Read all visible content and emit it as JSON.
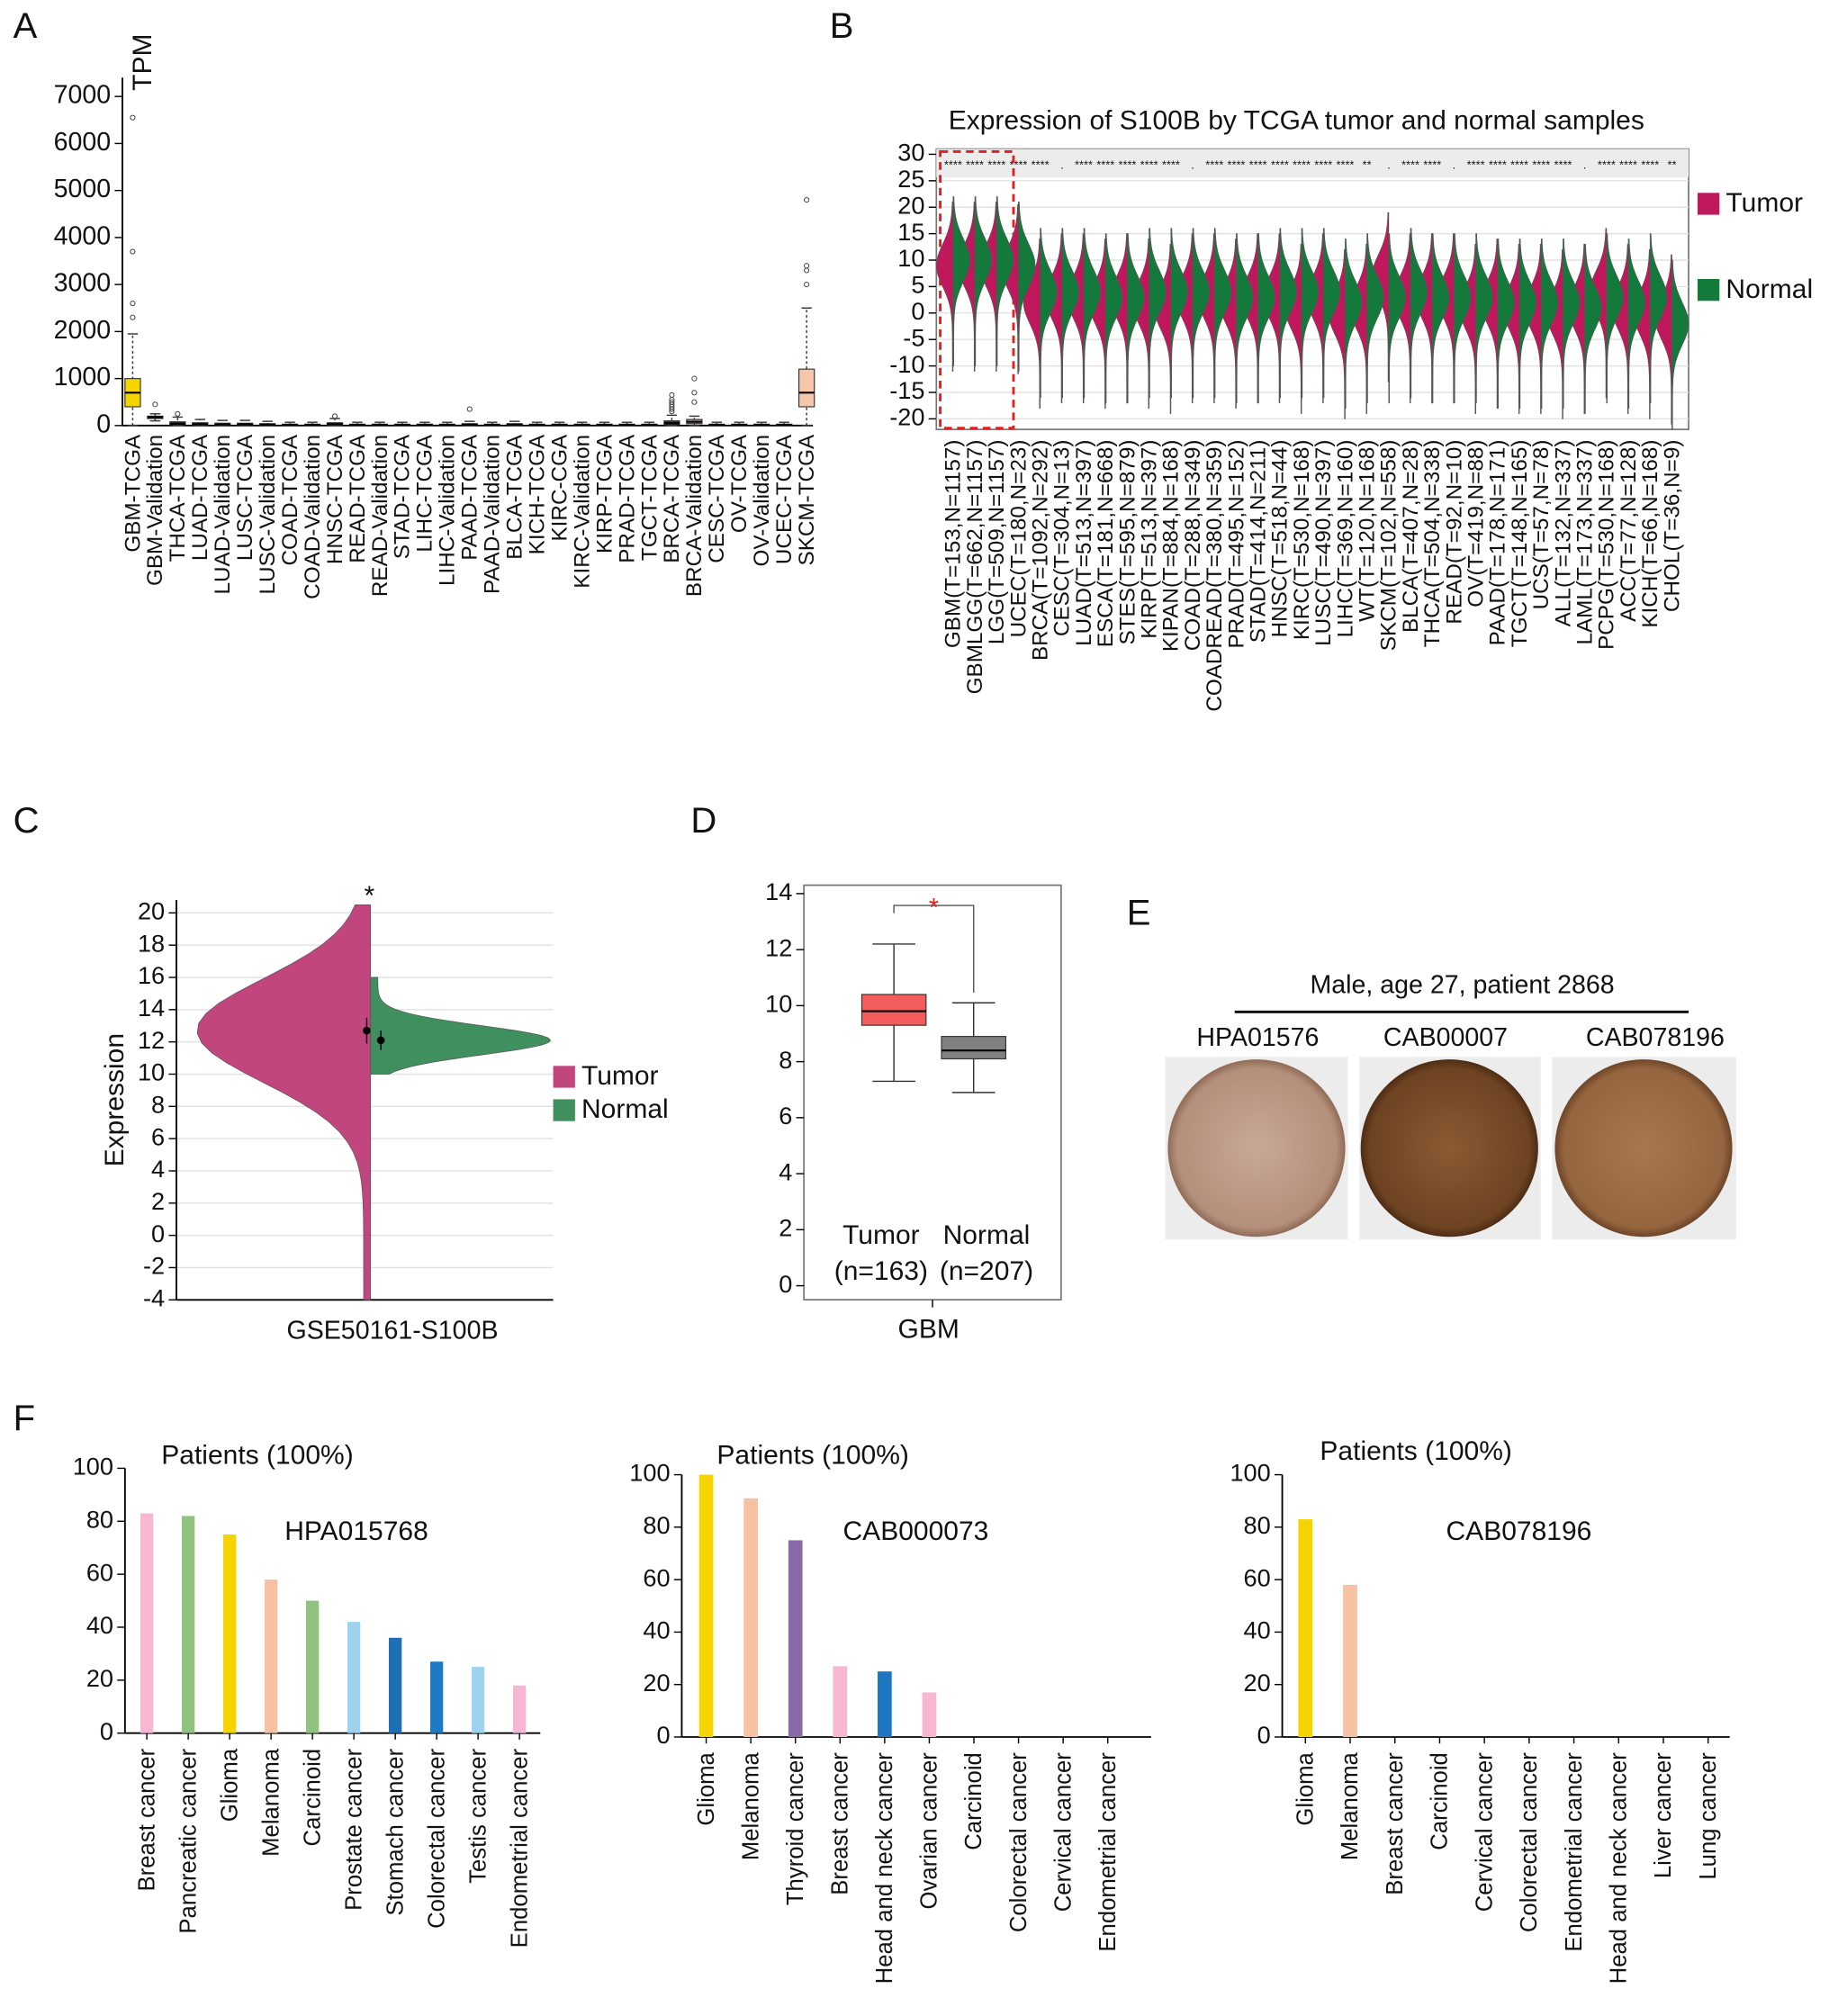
{
  "chart_data": [
    {
      "type": "box",
      "panel": "A",
      "ylabel": "TPM",
      "categories": [
        "GBM-TCGA",
        "GBM-Validation",
        "THCA-TCGA",
        "LUAD-TCGA",
        "LUAD-Validation",
        "LUSC-TCGA",
        "LUSC-Validation",
        "COAD-TCGA",
        "COAD-Validation",
        "HNSC-TCGA",
        "READ-TCGA",
        "READ-Validation",
        "STAD-TCGA",
        "LIHC-TCGA",
        "LIHC-Validation",
        "PAAD-TCGA",
        "PAAD-Validation",
        "BLCA-TCGA",
        "KICH-TCGA",
        "KIRC-CGA",
        "KIRC-Validation",
        "KIRP-TCGA",
        "PRAD-TCGA",
        "TGCT-TCGA",
        "BRCA-TCGA",
        "BRCA-Validation",
        "CESC-TCGA",
        "OV-TCGA",
        "OV-Validation",
        "UCEC-TCGA",
        "SKCM-TCGA"
      ],
      "boxes": [
        [
          0,
          400,
          700,
          1000,
          1950
        ],
        [
          100,
          150,
          180,
          200,
          250
        ],
        [
          0,
          20,
          40,
          80,
          180
        ],
        [
          0,
          10,
          30,
          60,
          130
        ],
        [
          0,
          10,
          25,
          50,
          110
        ],
        [
          0,
          10,
          25,
          50,
          110
        ],
        [
          0,
          10,
          20,
          40,
          90
        ],
        [
          0,
          5,
          15,
          30,
          70
        ],
        [
          0,
          5,
          15,
          30,
          70
        ],
        [
          0,
          10,
          30,
          60,
          150
        ],
        [
          0,
          5,
          15,
          30,
          70
        ],
        [
          0,
          5,
          15,
          30,
          70
        ],
        [
          0,
          5,
          15,
          30,
          70
        ],
        [
          0,
          5,
          15,
          30,
          70
        ],
        [
          0,
          5,
          15,
          30,
          70
        ],
        [
          0,
          10,
          20,
          40,
          90
        ],
        [
          0,
          5,
          15,
          30,
          70
        ],
        [
          0,
          10,
          20,
          40,
          90
        ],
        [
          0,
          5,
          15,
          30,
          70
        ],
        [
          0,
          5,
          15,
          30,
          70
        ],
        [
          0,
          5,
          15,
          30,
          70
        ],
        [
          0,
          5,
          15,
          30,
          70
        ],
        [
          0,
          5,
          15,
          30,
          70
        ],
        [
          0,
          5,
          15,
          30,
          70
        ],
        [
          0,
          20,
          50,
          100,
          220
        ],
        [
          0,
          40,
          80,
          130,
          200
        ],
        [
          0,
          5,
          15,
          30,
          70
        ],
        [
          0,
          5,
          15,
          30,
          70
        ],
        [
          0,
          5,
          15,
          30,
          70
        ],
        [
          0,
          5,
          15,
          30,
          70
        ],
        [
          0,
          400,
          700,
          1200,
          2500
        ]
      ],
      "outliers": [
        [
          2300,
          2600,
          3700,
          6550
        ],
        [
          450
        ],
        [
          250
        ],
        [],
        [],
        [],
        [],
        [],
        [],
        [
          200
        ],
        [],
        [],
        [],
        [],
        [],
        [
          350
        ],
        [],
        [],
        [],
        [],
        [],
        [],
        [],
        [],
        [
          300,
          350,
          400,
          450,
          500,
          550,
          650
        ],
        [
          500,
          700,
          1000
        ],
        [],
        [],
        [],
        [],
        [
          3000,
          3300,
          3400,
          4800
        ]
      ],
      "colors": [
        "#f5d400",
        "#e8b400",
        "#333333",
        "#333333",
        "#333333",
        "#333333",
        "#333333",
        "#333333",
        "#333333",
        "#333333",
        "#333333",
        "#333333",
        "#333333",
        "#333333",
        "#333333",
        "#333333",
        "#333333",
        "#333333",
        "#333333",
        "#333333",
        "#333333",
        "#333333",
        "#333333",
        "#333333",
        "#333333",
        "#b89aa8",
        "#333333",
        "#333333",
        "#333333",
        "#333333",
        "#f7c6ab"
      ],
      "ylim": [
        0,
        7400
      ],
      "yticks": [
        0,
        1000,
        2000,
        3000,
        4000,
        5000,
        6000,
        7000
      ]
    },
    {
      "type": "violin",
      "panel": "B",
      "title": "Expression of S100B by TCGA tumor and normal samples",
      "grid": true,
      "categories": [
        "GBM(T=153,N=1157)",
        "GBMLGG(T=662,N=1157)",
        "LGG(T=509,N=1157)",
        "UCEC(T=180,N=23)",
        "BRCA(T=1092,N=292)",
        "CESC(T=304,N=13)",
        "LUAD(T=513,N=397)",
        "ESCA(T=181,N=668)",
        "STES(T=595,N=879)",
        "KIRP(T=513,N=397)",
        "KIPAN(T=884,N=168)",
        "COAD(T=288,N=349)",
        "COADREAD(T=380,N=359)",
        "PRAD(T=495,N=152)",
        "STAD(T=414,N=211)",
        "HNSC(T=518,N=44)",
        "KIRC(T=530,N=168)",
        "LUSC(T=490,N=397)",
        "LIHC(T=369,N=160)",
        "WT(T=120,N=168)",
        "SKCM(T=102,N=558)",
        "BLCA(T=407,N=28)",
        "THCA(T=504,N=338)",
        "READ(T=92,N=10)",
        "OV(T=419,N=88)",
        "PAAD(T=178,N=171)",
        "TGCT(T=148,N=165)",
        "UCS(T=57,N=78)",
        "ALL(T=132,N=337)",
        "LAML(T=173,N=337)",
        "PCPG(T=530,N=168)",
        "ACC(T=77,N=128)",
        "KICH(T=66,N=168)",
        "CHOL(T=36,N=9)"
      ],
      "annotations": [
        "****",
        "****",
        "****",
        "****",
        "****",
        ".",
        "****",
        "****",
        "****",
        "****",
        "****",
        ".",
        "****",
        "****",
        "****",
        "****",
        "****",
        "****",
        "****",
        "**",
        ".",
        "****",
        "****",
        ".",
        "****",
        "****",
        "****",
        "****",
        "****",
        ".",
        "****",
        "****",
        "****",
        "**"
      ],
      "series": [
        {
          "name": "Tumor",
          "color": "#c0185c",
          "values": [
            9,
            9,
            9,
            8.5,
            2,
            3,
            3,
            2,
            3,
            2,
            1,
            3,
            3,
            2,
            3,
            3,
            1,
            3,
            0,
            1,
            7,
            3,
            3,
            3,
            1,
            2,
            1,
            1,
            0,
            1,
            4,
            1,
            0,
            -1
          ]
        },
        {
          "name": "Normal",
          "color": "#137a3c",
          "values": [
            10,
            10,
            10,
            9,
            4,
            4,
            4,
            3,
            3,
            4,
            4,
            4,
            4,
            3,
            3,
            4,
            4,
            4,
            2,
            3,
            3,
            4,
            3,
            3,
            3,
            2,
            2,
            2,
            2,
            1,
            3,
            2,
            3,
            -2
          ]
        }
      ],
      "ylim": [
        -22,
        31
      ],
      "yticks": [
        -20,
        -15,
        -10,
        -5,
        0,
        5,
        10,
        15,
        20,
        25,
        30
      ]
    },
    {
      "type": "violin",
      "panel": "C",
      "ylabel": "Expression",
      "grid": true,
      "annotation": "*",
      "categories": [
        "GSE50161-S100B"
      ],
      "series": [
        {
          "name": "Tumor",
          "color": "#c2467e",
          "values": [
            12.7
          ],
          "errors": [
            0.8
          ]
        },
        {
          "name": "Normal",
          "color": "#3f8f5f",
          "values": [
            12.1
          ],
          "errors": [
            0.6
          ]
        }
      ],
      "ylim": [
        -4,
        20.8
      ],
      "yticks": [
        -4,
        -2,
        0,
        2,
        4,
        6,
        8,
        10,
        12,
        14,
        16,
        18,
        20
      ]
    },
    {
      "type": "box",
      "panel": "D",
      "xlabel": "GBM",
      "annotation": "*",
      "categories": [
        "Tumor",
        "Normal"
      ],
      "sublabels": [
        "(n=163)",
        "(n=207)"
      ],
      "boxes": [
        [
          7.3,
          9.3,
          9.8,
          10.4,
          12.2
        ],
        [
          6.9,
          8.1,
          8.4,
          8.9,
          10.1
        ]
      ],
      "colors": [
        "#f25c5c",
        "#808080"
      ],
      "ylim": [
        -0.5,
        14.3
      ],
      "yticks": [
        0,
        2,
        4,
        6,
        8,
        10,
        12,
        14
      ]
    },
    {
      "type": "bar",
      "panel": "F",
      "title": "Patients (100%)",
      "annotation": "HPA015768",
      "categories": [
        "Breast cancer",
        "Pancreatic cancer",
        "Glioma",
        "Melanoma",
        "Carcinoid",
        "Prostate cancer",
        "Stomach cancer",
        "Colorectal cancer",
        "Testis cancer",
        "Endometrial cancer"
      ],
      "values": [
        83,
        82,
        75,
        58,
        50,
        42,
        36,
        27,
        25,
        18
      ],
      "colors": [
        "#f7b6d2",
        "#8fc27f",
        "#f5d400",
        "#f7c1a4",
        "#8fc27f",
        "#9ed3f0",
        "#1f6fb5",
        "#1f7ac4",
        "#9ed3f0",
        "#f7b6d2"
      ],
      "ylim": [
        0,
        100
      ],
      "yticks": [
        0,
        20,
        40,
        60,
        80,
        100
      ]
    },
    {
      "type": "bar",
      "title": "Patients (100%)",
      "annotation": "CAB000073",
      "categories": [
        "Glioma",
        "Melanoma",
        "Thyroid cancer",
        "Breast cancer",
        "Head and neck cancer",
        "Ovarian cancer",
        "Carcinoid",
        "Colorectal cancer",
        "Cervical cancer",
        "Endometrial cancer"
      ],
      "values": [
        100,
        91,
        75,
        27,
        25,
        17,
        0,
        0,
        0,
        0
      ],
      "colors": [
        "#f5d400",
        "#f7c1a4",
        "#8a6aa8",
        "#f7b6d2",
        "#1f77c4",
        "#f7b6d2",
        "#f7b6d2",
        "#1f77c4",
        "#f7b6d2",
        "#f7b6d2"
      ],
      "ylim": [
        0,
        100
      ],
      "yticks": [
        0,
        20,
        40,
        60,
        80,
        100
      ]
    },
    {
      "type": "bar",
      "title": "Patients (100%)",
      "annotation": "CAB078196",
      "categories": [
        "Glioma",
        "Melanoma",
        "Breast cancer",
        "Carcinoid",
        "Cervical cancer",
        "Colorectal cancer",
        "Endometrial cancer",
        "Head and neck cancer",
        "Liver cancer",
        "Lung cancer"
      ],
      "values": [
        83,
        58,
        0,
        0,
        0,
        0,
        0,
        0,
        0,
        0
      ],
      "colors": [
        "#f5d400",
        "#f7c1a4",
        "#f7b6d2",
        "#8fc27f",
        "#f7b6d2",
        "#1f77c4",
        "#f7b6d2",
        "#1f77c4",
        "#9ed3f0",
        "#9ed3f0"
      ],
      "ylim": [
        0,
        100
      ],
      "yticks": [
        0,
        20,
        40,
        60,
        80,
        100
      ]
    }
  ],
  "panel_e": {
    "panel": "E",
    "title": "Male, age 27, patient 2868",
    "labels": [
      "HPA01576",
      "CAB00007",
      "CAB078196"
    ]
  }
}
